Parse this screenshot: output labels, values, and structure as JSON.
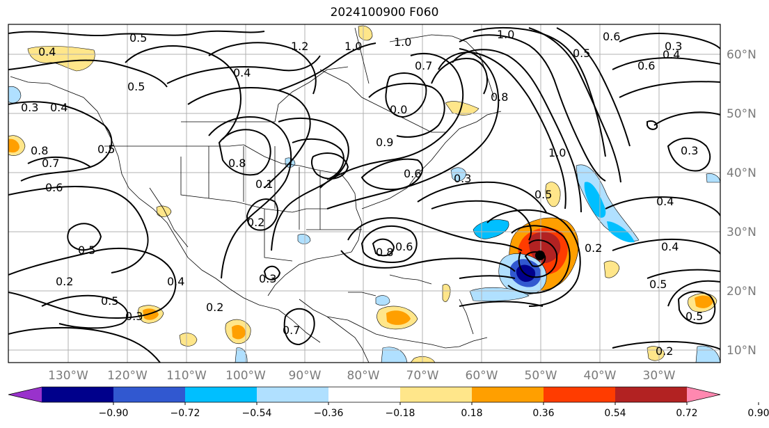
{
  "title": "2024100900 F060",
  "longitude_ticks": [
    "130°W",
    "120°W",
    "110°W",
    "100°W",
    "90°W",
    "80°W",
    "70°W",
    "60°W",
    "50°W",
    "40°W",
    "30°W"
  ],
  "latitude_ticks": [
    "60°N",
    "50°N",
    "40°N",
    "30°N",
    "20°N",
    "10°N"
  ],
  "contour_labels": [
    "0.5",
    "1.2",
    "0.4",
    "0.3",
    "0.8",
    "0.7",
    "0.6",
    "0.2",
    "1.0",
    "0.9",
    "0.1",
    "0.0"
  ],
  "colorbar": {
    "colors": [
      "#9932cc",
      "#00008b",
      "#3158d0",
      "#00bfff",
      "#b0e0ff",
      "#ffffff",
      "#ffe68a",
      "#ff9f00",
      "#ff3c00",
      "#b22222",
      "#ff88b0"
    ],
    "labels": [
      "−0.90",
      "−0.72",
      "−0.54",
      "−0.36",
      "−0.18",
      "0.18",
      "0.36",
      "0.54",
      "0.72",
      "0.90"
    ]
  }
}
